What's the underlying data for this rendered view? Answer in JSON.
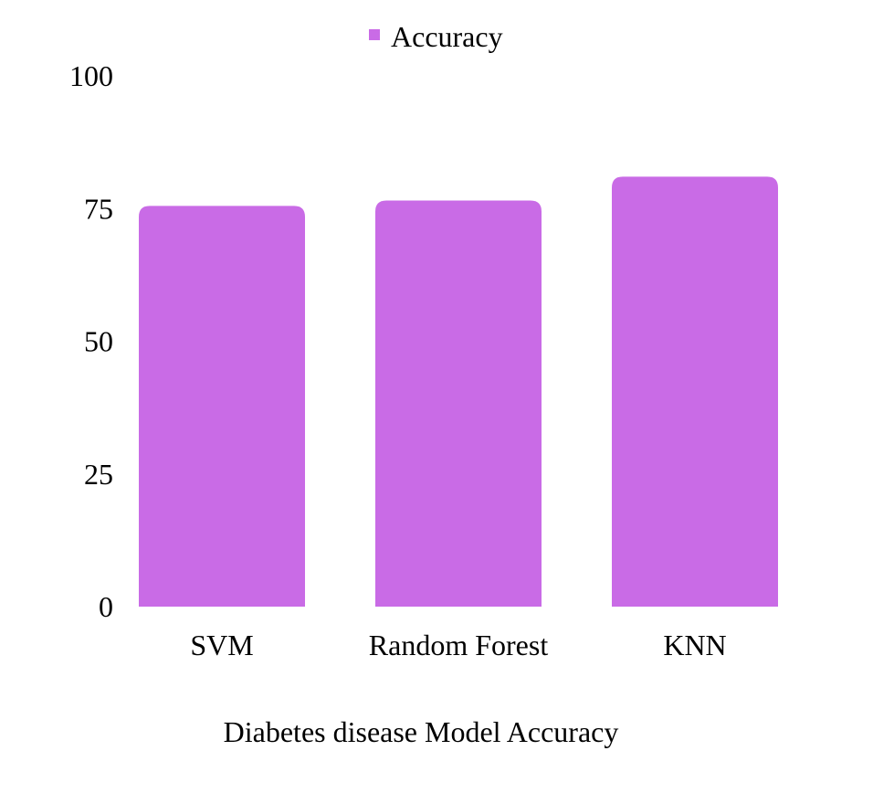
{
  "chart_data": {
    "type": "bar",
    "title": "",
    "xlabel": "Diabetes disease Model Accuracy",
    "ylabel": "",
    "categories": [
      "SVM",
      "Random Forest",
      "KNN"
    ],
    "series": [
      {
        "name": "Accuracy",
        "values": [
          75.5,
          76.5,
          81
        ],
        "color": "#c96be6"
      }
    ],
    "ylim": [
      0,
      100
    ],
    "yticks": [
      "0",
      "25",
      "50",
      "75",
      "100"
    ],
    "grid": false,
    "legend": "top-center"
  }
}
